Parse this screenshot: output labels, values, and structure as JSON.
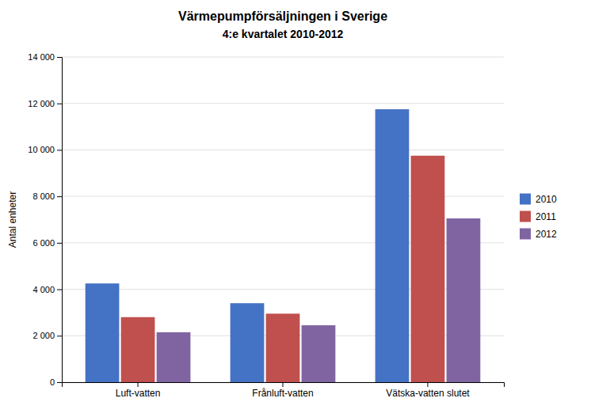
{
  "chart_data": {
    "type": "bar",
    "title": "Värmepumpförsäljningen i Sverige",
    "subtitle": "4:e kvartalet 2010-2012",
    "categories": [
      "Luft-vatten",
      "Frånluft-vatten",
      "Vätska-vatten slutet"
    ],
    "series": [
      {
        "name": "2010",
        "color": "#4472C4",
        "values": [
          4250,
          3400,
          11750
        ]
      },
      {
        "name": "2011",
        "color": "#C0504D",
        "values": [
          2800,
          2950,
          9750
        ]
      },
      {
        "name": "2012",
        "color": "#8064A2",
        "values": [
          2150,
          2450,
          7050
        ]
      }
    ],
    "ylabel": "Antal enheter",
    "ylim": [
      0,
      14000
    ],
    "yticks": [
      0,
      {
        "value": 2000,
        "label": "2 000"
      },
      {
        "value": 4000,
        "label": "4 000"
      },
      {
        "value": 6000,
        "label": "6 000"
      },
      {
        "value": 8000,
        "label": "8 000"
      },
      {
        "value": 10000,
        "label": "10 000"
      },
      {
        "value": 12000,
        "label": "12 000"
      },
      {
        "value": 14000,
        "label": "14 000"
      }
    ],
    "grid": true,
    "legend": "right"
  }
}
